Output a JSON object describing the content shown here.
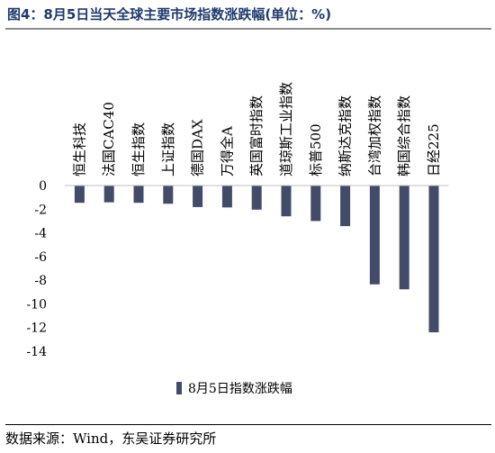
{
  "chart_data": {
    "type": "bar",
    "title": "图4：8月5日当天全球主要市场指数涨跌幅(单位：%)",
    "categories": [
      "恒生科技",
      "法国CAC40",
      "恒生指数",
      "上证指数",
      "德国DAX",
      "万得全A",
      "英国富时指数",
      "道琼斯工业指数",
      "标普500",
      "纳斯达克指数",
      "台湾加权指数",
      "韩国综合指数",
      "日经225"
    ],
    "series": [
      {
        "name": "8月5日指数涨跌幅",
        "values": [
          -1.46,
          -1.42,
          -1.46,
          -1.54,
          -1.82,
          -1.85,
          -2.04,
          -2.6,
          -3.0,
          -3.43,
          -8.35,
          -8.77,
          -12.4
        ],
        "color": "#424c68"
      }
    ],
    "ylim": [
      -14,
      0
    ],
    "yticks": [
      0,
      -2,
      -4,
      -6,
      -8,
      -10,
      -12,
      -14
    ],
    "legend_position": "bottom",
    "grid": false
  },
  "source": "数据来源：Wind，东吴证券研究所"
}
